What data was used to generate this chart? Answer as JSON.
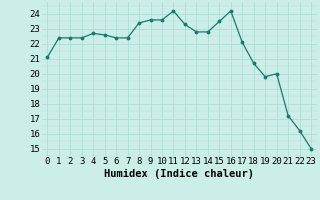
{
  "x": [
    0,
    1,
    2,
    3,
    4,
    5,
    6,
    7,
    8,
    9,
    10,
    11,
    12,
    13,
    14,
    15,
    16,
    17,
    18,
    19,
    20,
    21,
    22,
    23
  ],
  "y": [
    21.1,
    22.4,
    22.4,
    22.4,
    22.7,
    22.6,
    22.4,
    22.4,
    23.4,
    23.6,
    23.6,
    24.2,
    23.3,
    22.8,
    22.8,
    23.5,
    24.2,
    22.1,
    20.7,
    19.8,
    20.0,
    17.2,
    16.2,
    15.0
  ],
  "title": "",
  "xlabel": "Humidex (Indice chaleur)",
  "ylabel": "",
  "xlim": [
    -0.5,
    23.5
  ],
  "ylim": [
    14.5,
    24.8
  ],
  "yticks": [
    15,
    16,
    17,
    18,
    19,
    20,
    21,
    22,
    23,
    24
  ],
  "xtick_labels": [
    "0",
    "1",
    "2",
    "3",
    "4",
    "5",
    "6",
    "7",
    "8",
    "9",
    "10",
    "11",
    "12",
    "13",
    "14",
    "15",
    "16",
    "17",
    "18",
    "19",
    "20",
    "21",
    "22",
    "23"
  ],
  "line_color": "#1a7a6a",
  "marker_color": "#1a7a6a",
  "bg_color": "#cceee8",
  "grid_color": "#b0dcd6",
  "label_fontsize": 7.5,
  "tick_fontsize": 6.5
}
